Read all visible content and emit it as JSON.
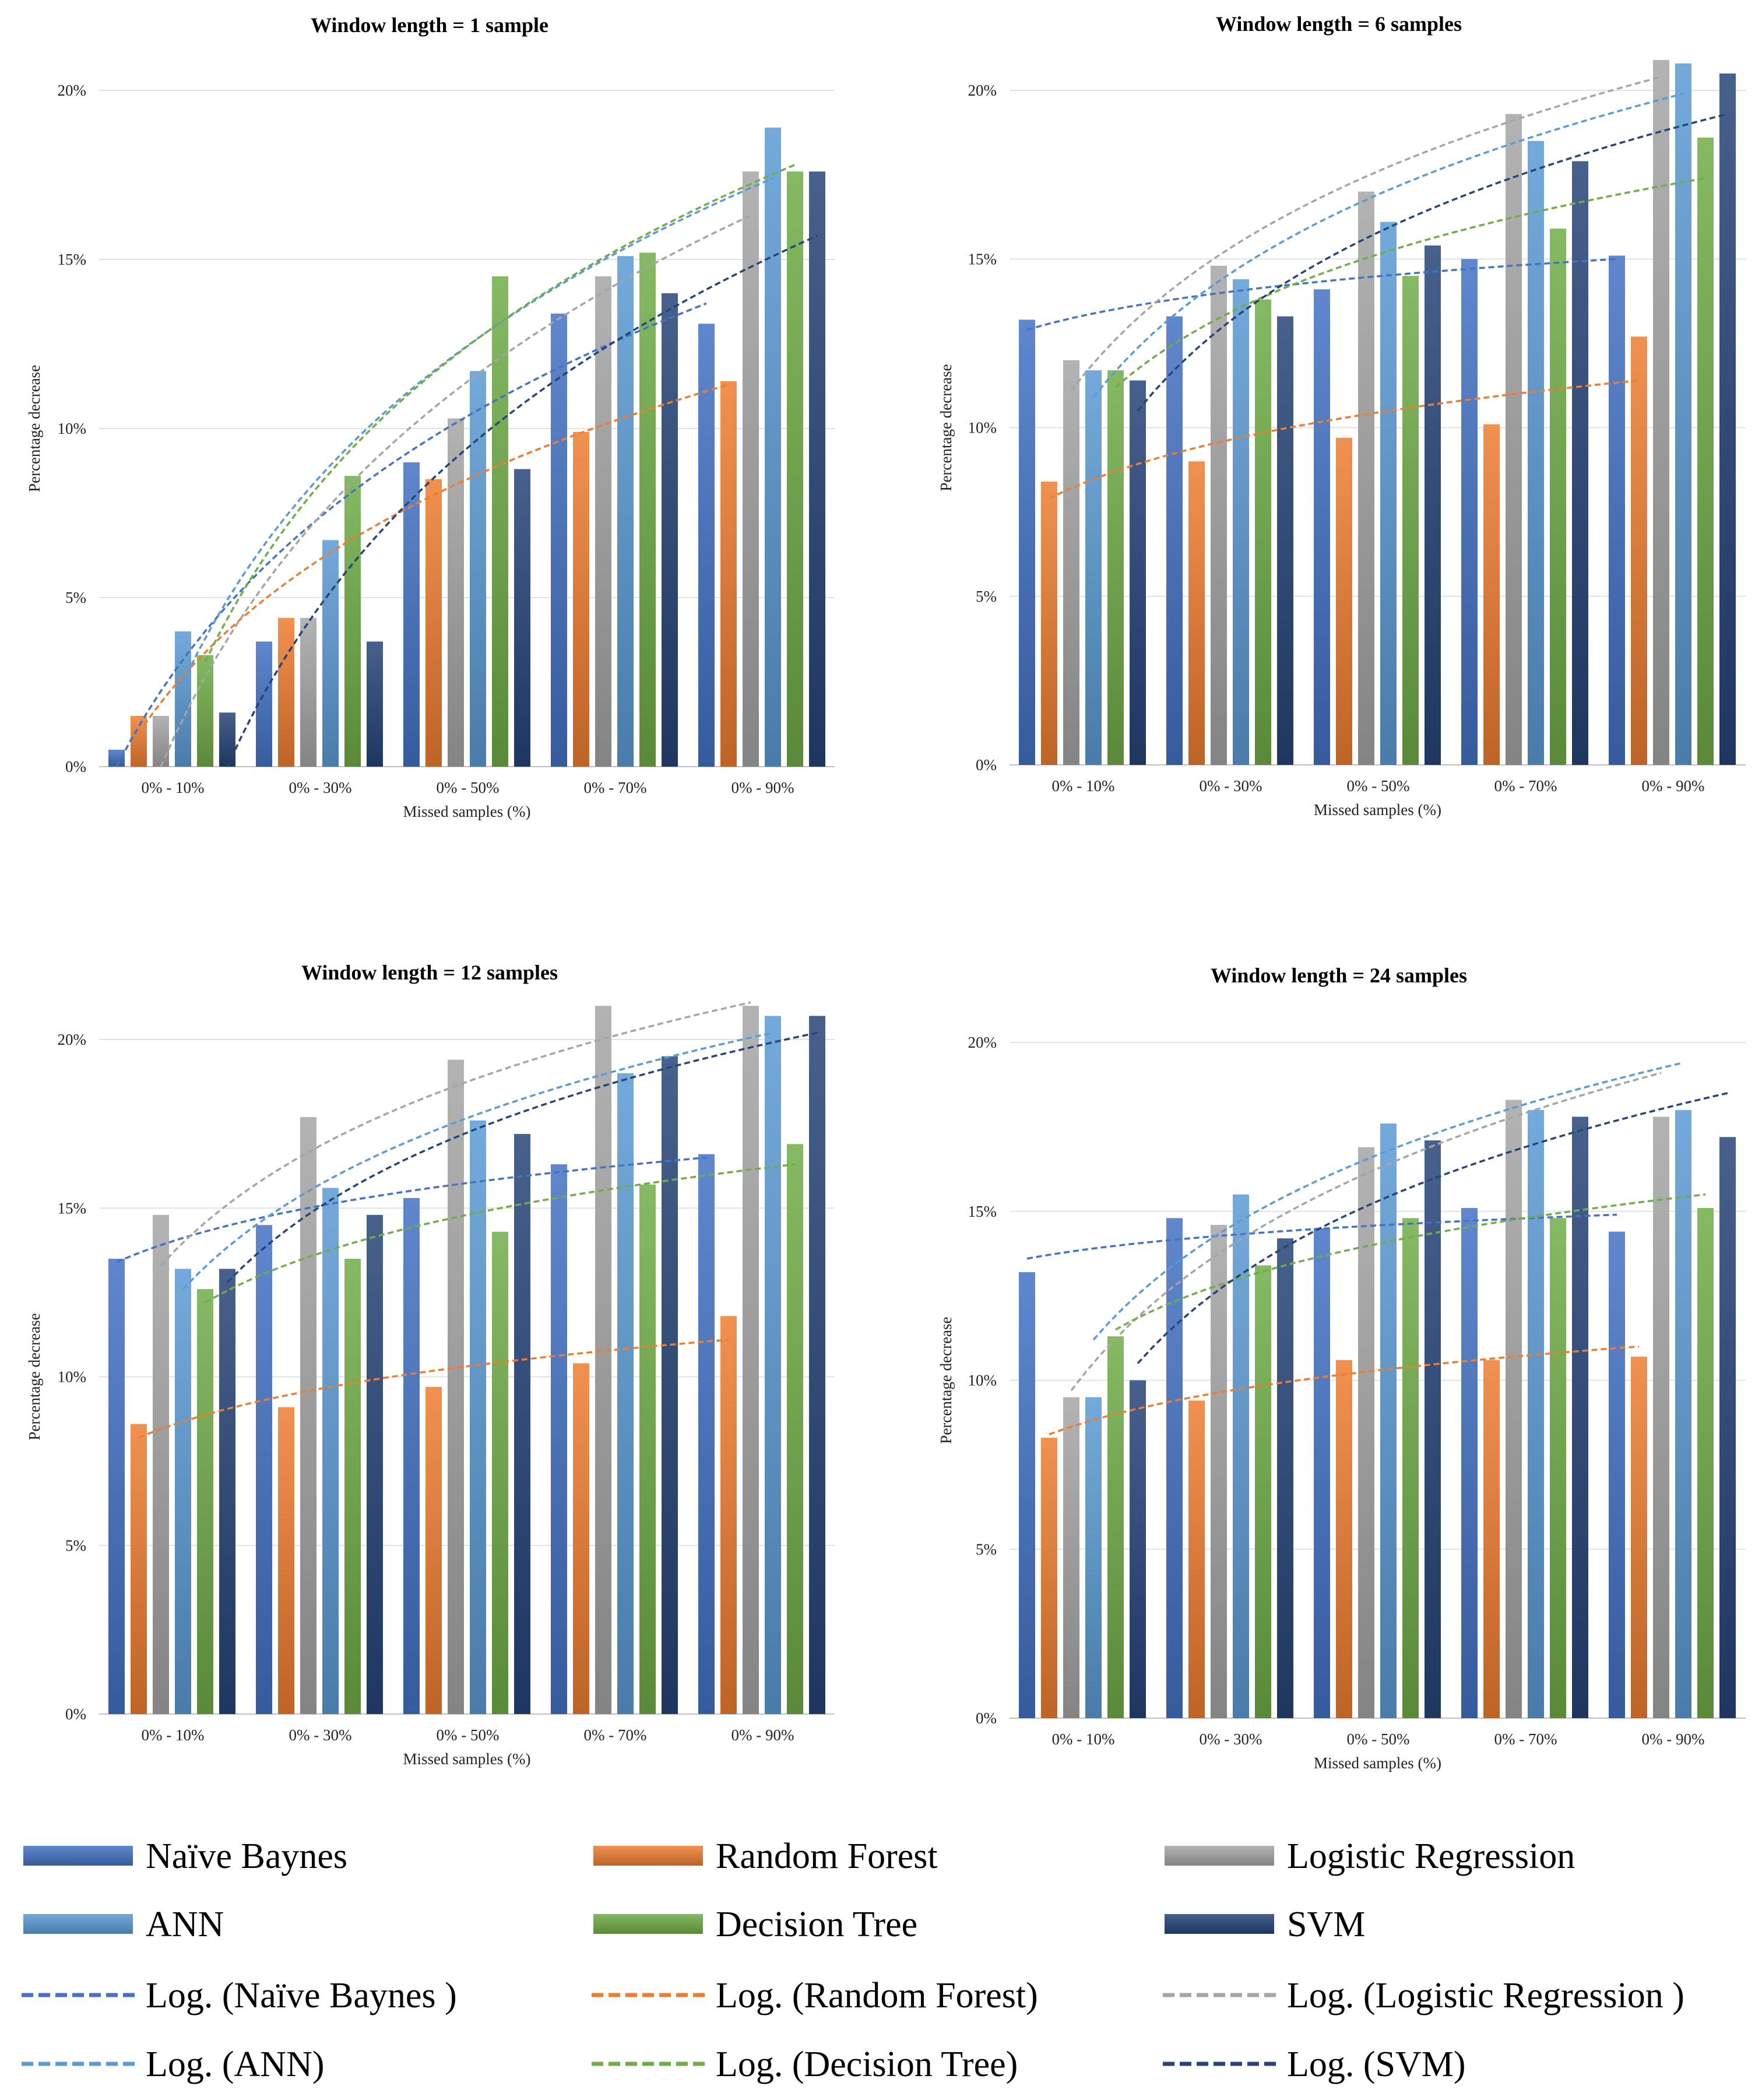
{
  "chart_data": [
    {
      "type": "bar",
      "title": "Window length = 1 sample",
      "xlabel": "Missed samples (%)",
      "ylabel": "Percentage decrease",
      "ylim": [
        0,
        20
      ],
      "yticks": [
        "0%",
        "5%",
        "10%",
        "15%",
        "20%"
      ],
      "categories": [
        "0% - 10%",
        "0% - 30%",
        "0% - 50%",
        "0% - 70%",
        "0% - 90%"
      ],
      "series": [
        {
          "name": "Naïve Baynes",
          "values": [
            0.5,
            3.7,
            9.0,
            13.4,
            13.1
          ]
        },
        {
          "name": "Random Forest",
          "values": [
            1.5,
            4.4,
            8.5,
            9.9,
            11.4
          ]
        },
        {
          "name": "Logistic Regression",
          "values": [
            1.5,
            4.4,
            10.3,
            14.5,
            17.6
          ]
        },
        {
          "name": "ANN",
          "values": [
            4.0,
            6.7,
            11.7,
            15.1,
            18.9
          ]
        },
        {
          "name": "Decision Tree",
          "values": [
            3.3,
            8.6,
            14.5,
            15.2,
            17.6
          ]
        },
        {
          "name": "SVM",
          "values": [
            1.6,
            3.7,
            8.8,
            14.0,
            17.6
          ]
        }
      ],
      "trendlines": [
        {
          "name": "Log. (Naïve Baynes )",
          "start": 0.0,
          "end": 13.7
        },
        {
          "name": "Log. (Random Forest)",
          "start": 1.0,
          "end": 11.3
        },
        {
          "name": "Log. (Logistic Regression )",
          "start": 0.0,
          "end": 16.3
        },
        {
          "name": "Log. (ANN)",
          "start": 2.5,
          "end": 17.4
        },
        {
          "name": "Log. (Decision Tree)",
          "start": 3.1,
          "end": 17.8
        },
        {
          "name": "Log. (SVM)",
          "start": 0.0,
          "end": 15.7
        }
      ]
    },
    {
      "type": "bar",
      "title": "Window length = 6 samples",
      "xlabel": "Missed samples (%)",
      "ylabel": "Percentage decrease",
      "ylim": [
        0,
        20
      ],
      "yticks": [
        "0%",
        "5%",
        "10%",
        "15%",
        "20%"
      ],
      "categories": [
        "0% - 10%",
        "0% - 30%",
        "0% - 50%",
        "0% - 70%",
        "0% - 90%"
      ],
      "series": [
        {
          "name": "Naïve Baynes",
          "values": [
            13.2,
            13.3,
            14.1,
            15.0,
            15.1
          ]
        },
        {
          "name": "Random Forest",
          "values": [
            8.4,
            9.0,
            9.7,
            10.1,
            12.7
          ]
        },
        {
          "name": "Logistic Regression",
          "values": [
            12.0,
            14.8,
            17.0,
            19.3,
            20.9
          ]
        },
        {
          "name": "ANN",
          "values": [
            11.7,
            14.4,
            16.1,
            18.5,
            20.8
          ]
        },
        {
          "name": "Decision Tree",
          "values": [
            11.7,
            13.8,
            14.5,
            15.9,
            18.6
          ]
        },
        {
          "name": "SVM",
          "values": [
            11.4,
            13.3,
            15.4,
            17.9,
            20.5
          ]
        }
      ],
      "trendlines": [
        {
          "name": "Log. (Naïve Baynes )",
          "start": 12.9,
          "end": 15.0
        },
        {
          "name": "Log. (Random Forest)",
          "start": 7.9,
          "end": 11.4
        },
        {
          "name": "Log. (Logistic Regression )",
          "start": 11.1,
          "end": 20.4
        },
        {
          "name": "Log. (ANN)",
          "start": 10.9,
          "end": 19.9
        },
        {
          "name": "Log. (Decision Tree)",
          "start": 11.2,
          "end": 17.4
        },
        {
          "name": "Log. (SVM)",
          "start": 10.5,
          "end": 19.3
        }
      ]
    },
    {
      "type": "bar",
      "title": "Window length = 12 samples",
      "xlabel": "Missed samples (%)",
      "ylabel": "Percentage decrease",
      "ylim": [
        0,
        20
      ],
      "yticks": [
        "0%",
        "5%",
        "10%",
        "15%",
        "20%"
      ],
      "categories": [
        "0% - 10%",
        "0% - 30%",
        "0% - 50%",
        "0% - 70%",
        "0% - 90%"
      ],
      "series": [
        {
          "name": "Naïve Baynes",
          "values": [
            13.5,
            14.5,
            15.3,
            16.3,
            16.6
          ]
        },
        {
          "name": "Random Forest",
          "values": [
            8.6,
            9.1,
            9.7,
            10.4,
            11.8
          ]
        },
        {
          "name": "Logistic Regression",
          "values": [
            14.8,
            17.7,
            19.4,
            21.0,
            21.1
          ]
        },
        {
          "name": "ANN",
          "values": [
            13.2,
            15.6,
            17.6,
            19.0,
            20.7
          ]
        },
        {
          "name": "Decision Tree",
          "values": [
            12.6,
            13.5,
            14.3,
            15.7,
            16.9
          ]
        },
        {
          "name": "SVM",
          "values": [
            13.2,
            14.8,
            17.2,
            19.5,
            20.7
          ]
        }
      ],
      "trendlines": [
        {
          "name": "Log. (Naïve Baynes )",
          "start": 13.4,
          "end": 16.5
        },
        {
          "name": "Log. (Random Forest)",
          "start": 8.2,
          "end": 11.1
        },
        {
          "name": "Log. (Logistic Regression )",
          "start": 13.3,
          "end": 21.1
        },
        {
          "name": "Log. (ANN)",
          "start": 12.6,
          "end": 20.2
        },
        {
          "name": "Log. (Decision Tree)",
          "start": 12.2,
          "end": 16.3
        },
        {
          "name": "Log. (SVM)",
          "start": 12.8,
          "end": 20.2
        }
      ]
    },
    {
      "type": "bar",
      "title": "Window length = 24 samples",
      "xlabel": "Missed samples (%)",
      "ylabel": "Percentage decrease",
      "ylim": [
        0,
        20
      ],
      "yticks": [
        "0%",
        "5%",
        "10%",
        "15%",
        "20%"
      ],
      "categories": [
        "0% - 10%",
        "0% - 30%",
        "0% - 50%",
        "0% - 70%",
        "0% - 90%"
      ],
      "series": [
        {
          "name": "Naïve Baynes",
          "values": [
            13.2,
            14.8,
            14.5,
            15.1,
            14.4
          ]
        },
        {
          "name": "Random Forest",
          "values": [
            8.3,
            9.4,
            10.6,
            10.6,
            10.7
          ]
        },
        {
          "name": "Logistic Regression",
          "values": [
            9.5,
            14.6,
            16.9,
            18.3,
            17.8
          ]
        },
        {
          "name": "ANN",
          "values": [
            9.5,
            15.5,
            17.6,
            18.0,
            18.0
          ]
        },
        {
          "name": "Decision Tree",
          "values": [
            11.3,
            13.4,
            14.8,
            14.8,
            15.1
          ]
        },
        {
          "name": "SVM",
          "values": [
            10.0,
            14.2,
            17.1,
            17.8,
            17.2
          ]
        }
      ],
      "trendlines": [
        {
          "name": "Log. (Naïve Baynes )",
          "start": 13.6,
          "end": 14.9
        },
        {
          "name": "Log. (Random Forest)",
          "start": 8.4,
          "end": 11.0
        },
        {
          "name": "Log. (Logistic Regression )",
          "start": 9.7,
          "end": 19.1
        },
        {
          "name": "Log. (ANN)",
          "start": 11.2,
          "end": 19.4
        },
        {
          "name": "Log. (Decision Tree)",
          "start": 11.5,
          "end": 15.5
        },
        {
          "name": "Log. (SVM)",
          "start": 10.5,
          "end": 18.5
        }
      ]
    }
  ],
  "legend": [
    {
      "label": "Naïve Baynes",
      "kind": "bar",
      "color": "#4472c4"
    },
    {
      "label": "Random Forest",
      "kind": "bar",
      "color": "#ed7d31"
    },
    {
      "label": "Logistic Regression",
      "kind": "bar",
      "color": "#a5a5a5"
    },
    {
      "label": "ANN",
      "kind": "bar",
      "color": "#5b9bd5"
    },
    {
      "label": "Decision Tree",
      "kind": "bar",
      "color": "#70ad47"
    },
    {
      "label": "SVM",
      "kind": "bar",
      "color": "#264478"
    },
    {
      "label": "Log. (Naïve Baynes )",
      "kind": "line",
      "color": "#4472c4"
    },
    {
      "label": "Log. (Random Forest)",
      "kind": "line",
      "color": "#ed7d31"
    },
    {
      "label": "Log. (Logistic Regression )",
      "kind": "line",
      "color": "#a5a5a5"
    },
    {
      "label": "Log. (ANN)",
      "kind": "line",
      "color": "#5b9bd5"
    },
    {
      "label": "Log. (Decision Tree)",
      "kind": "line",
      "color": "#70ad47"
    },
    {
      "label": "Log. (SVM)",
      "kind": "line",
      "color": "#264478"
    }
  ],
  "colors": [
    "#4472c4",
    "#ed7d31",
    "#a5a5a5",
    "#5b9bd5",
    "#70ad47",
    "#264478"
  ]
}
